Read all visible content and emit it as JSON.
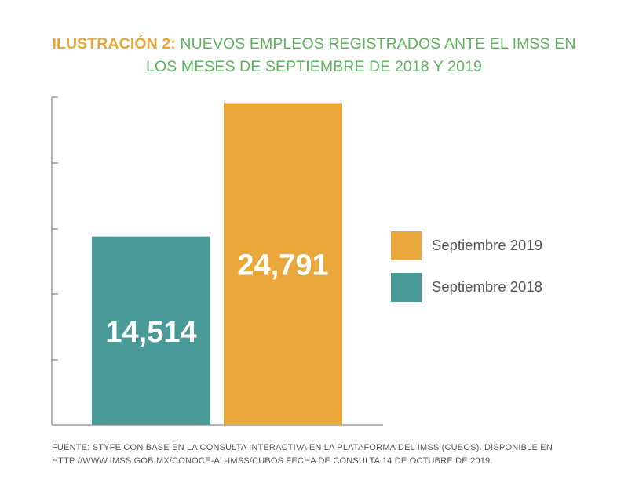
{
  "title": {
    "prefix": "ILUSTRACIÓN 2:",
    "line1": "NUEVOS EMPLEOS REGISTRADOS ANTE EL IMSS EN",
    "line2": "LOS MESES DE SEPTIEMBRE DE 2018 Y 2019"
  },
  "chart_data": {
    "type": "bar",
    "categories": [
      "Septiembre 2018",
      "Septiembre 2019"
    ],
    "values": [
      14514,
      24791
    ],
    "data_labels": [
      "14,514",
      "24,791"
    ],
    "colors": [
      "#4a9a98",
      "#e9a73c"
    ],
    "ylim": [
      0,
      25000
    ],
    "grid": false,
    "legend": {
      "placement": "right",
      "entries": [
        {
          "label": "Septiembre 2019",
          "color": "#e9a73c"
        },
        {
          "label": "Septiembre 2018",
          "color": "#4a9a98"
        }
      ]
    }
  },
  "source": {
    "line1": "FUENTE: STYFE CON BASE EN LA CONSULTA INTERACTIVA EN LA PLATAFORMA DEL IMSS (CUBOS).  DISPONIBLE EN",
    "line2": "HTTP://WWW.IMSS.GOB.MX/CONOCE-AL-IMSS/CUBOS  FECHA DE CONSULTA 14 DE OCTUBRE DE 2019."
  }
}
